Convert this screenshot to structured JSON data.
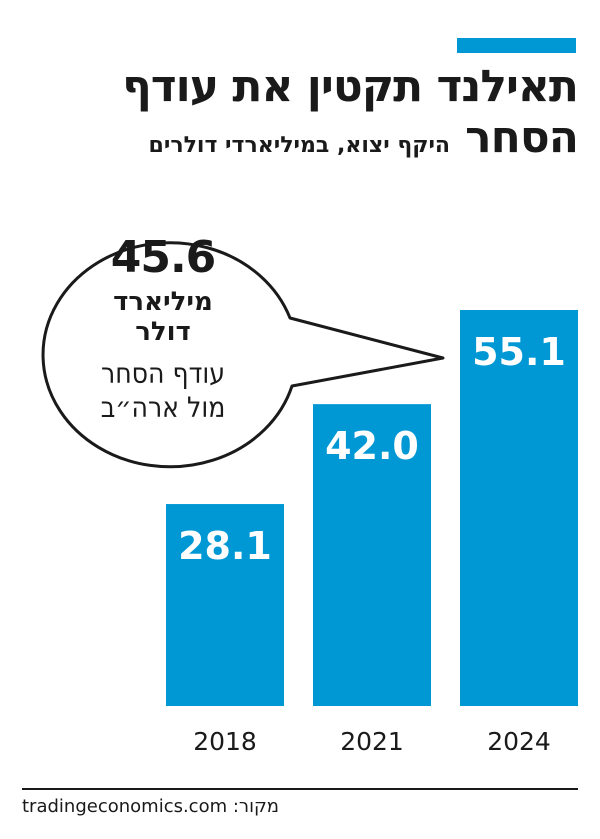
{
  "title_line1": "תאילנד תקטין את עודף",
  "title_line2": "הסחר",
  "subtitle": "היקף יצוא, במיליארדי דולרים",
  "callout": {
    "value": "45.6",
    "unit_line1": "מיליארד",
    "unit_line2": "דולר",
    "desc_line1": "עודף הסחר",
    "desc_line2": "מול ארה״ב"
  },
  "source": "tradingeconomics.com :מקור",
  "colors": {
    "bar": "#0098d4",
    "text": "#1a1a1a",
    "label": "#ffffff"
  },
  "chart_data": {
    "type": "bar",
    "title": "תאילנד תקטין את עודף הסחר",
    "subtitle": "היקף יצוא, במיליארדי דולרים",
    "categories": [
      "2018",
      "2021",
      "2024"
    ],
    "values": [
      28.1,
      42.0,
      55.1
    ],
    "value_labels": [
      "28.1",
      "42.0",
      "55.1"
    ],
    "ylim": [
      0,
      55.1
    ],
    "grid": false,
    "legend": false
  }
}
